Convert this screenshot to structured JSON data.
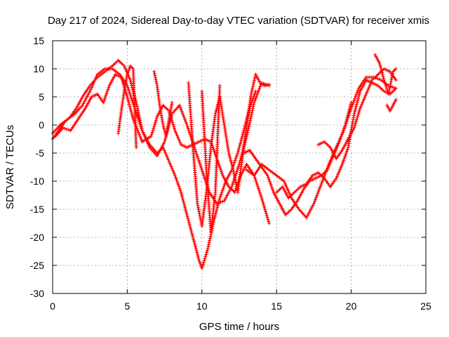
{
  "chart_data": {
    "type": "scatter",
    "title": "Day 217 of 2024, Sidereal Day-to-day VTEC variation (SDTVAR) for receiver xmis",
    "xlabel": "GPS time / hours",
    "ylabel": "SDTVAR / TECUs",
    "xlim": [
      0,
      25
    ],
    "ylim": [
      -30,
      15
    ],
    "xticks": [
      "0",
      "5",
      "10",
      "15",
      "20",
      "25"
    ],
    "yticks": [
      "15",
      "10",
      "5",
      "0",
      "-5",
      "-10",
      "-15",
      "-20",
      "-25",
      "-30"
    ],
    "grid": true,
    "marker": "+",
    "color": "#ff0000",
    "series": [
      {
        "x": [
          0.0,
          0.4,
          0.8,
          1.2,
          1.6,
          2.0,
          2.5,
          3.0,
          3.5,
          4.0,
          4.4,
          4.8,
          5.2,
          5.6,
          6.0,
          6.5,
          7.0,
          7.4,
          7.8,
          8.2,
          8.6,
          9.0,
          9.4,
          9.8,
          10.0,
          10.4,
          10.8,
          11.2,
          11.6,
          12.0,
          12.4,
          12.8,
          13.2,
          13.6
        ],
        "y": [
          -2.5,
          -1.0,
          0.5,
          1.5,
          3.0,
          5.0,
          7.0,
          8.5,
          9.5,
          10.5,
          11.5,
          10.5,
          8.0,
          4.0,
          -1.0,
          -3.5,
          -5.0,
          -4.0,
          -6.5,
          -9.0,
          -12.0,
          -16.0,
          -20.0,
          -24.0,
          -25.5,
          -22.0,
          -17.0,
          -13.0,
          -10.0,
          -8.0,
          -5.0,
          -1.0,
          3.0,
          6.0
        ]
      },
      {
        "x": [
          0.0,
          0.5,
          1.0,
          1.5,
          2.0,
          2.5,
          3.0,
          3.5,
          4.0,
          4.5,
          5.0,
          5.5,
          6.0,
          6.5,
          7.0,
          7.5,
          8.0,
          8.5,
          9.0,
          9.5,
          10.0,
          10.5,
          11.0,
          11.5,
          12.0,
          12.5,
          13.0,
          13.5,
          14.0,
          14.5
        ],
        "y": [
          -1.5,
          0.0,
          1.0,
          2.0,
          3.5,
          6.0,
          9.0,
          10.0,
          10.0,
          9.0,
          7.0,
          3.0,
          -1.0,
          -4.0,
          -5.5,
          -3.0,
          2.0,
          3.5,
          0.0,
          -4.0,
          -8.0,
          -12.0,
          -14.0,
          -13.5,
          -11.0,
          -7.0,
          -2.0,
          4.0,
          7.5,
          7.0
        ]
      },
      {
        "x": [
          0.2,
          0.7,
          1.2,
          1.7,
          2.2,
          2.6,
          3.0,
          3.4,
          3.8,
          4.2,
          4.6,
          5.0,
          5.4,
          6.0,
          6.6,
          7.0,
          7.4,
          7.8,
          8.2,
          8.6,
          9.0,
          9.4,
          9.8,
          10.2,
          10.6,
          11.0,
          11.4,
          11.8,
          12.2,
          12.6,
          13.0,
          13.5,
          14.0,
          14.5
        ],
        "y": [
          -2.0,
          -0.5,
          -1.0,
          1.0,
          3.0,
          5.0,
          5.5,
          4.0,
          7.0,
          9.0,
          8.5,
          5.0,
          1.0,
          -3.0,
          -2.0,
          1.5,
          3.5,
          2.5,
          -1.0,
          -3.5,
          -4.0,
          -3.5,
          -3.0,
          -2.5,
          -3.0,
          -6.0,
          -9.0,
          -11.0,
          -12.0,
          -9.0,
          -7.0,
          -9.0,
          -13.0,
          -17.5
        ]
      },
      {
        "x": [
          4.4,
          4.6,
          4.8,
          5.0,
          5.2,
          5.4,
          5.6
        ],
        "y": [
          -1.5,
          2.5,
          6.0,
          9.0,
          10.5,
          10.0,
          -4.0
        ]
      },
      {
        "x": [
          6.8,
          7.0,
          7.2,
          7.4,
          7.6,
          7.8,
          8.0
        ],
        "y": [
          9.5,
          7.0,
          3.0,
          0.0,
          -2.0,
          1.0,
          4.0
        ]
      },
      {
        "x": [
          9.1,
          9.4,
          9.7,
          10.0,
          10.3,
          10.6,
          10.9,
          11.2,
          11.5,
          11.8,
          12.1,
          12.4,
          12.7,
          13.0,
          13.3,
          13.6,
          13.9,
          14.2,
          14.5
        ],
        "y": [
          7.5,
          -4.0,
          -14.0,
          -18.0,
          -12.0,
          -4.0,
          2.0,
          5.0,
          0.0,
          -5.0,
          -8.0,
          -12.0,
          -6.0,
          0.0,
          5.5,
          9.0,
          7.5,
          7.0,
          7.2
        ]
      },
      {
        "x": [
          10.0,
          10.3,
          10.6,
          10.9,
          11.2
        ],
        "y": [
          6.0,
          -8.0,
          -19.0,
          -12.0,
          7.0
        ]
      },
      {
        "x": [
          12.8,
          13.2,
          13.6,
          14.0,
          14.4,
          14.8,
          15.2,
          15.6,
          16.0,
          16.4,
          16.8,
          17.2,
          17.6,
          18.0,
          18.4,
          18.8,
          19.2,
          19.6,
          20.0
        ],
        "y": [
          -5.0,
          -4.5,
          -6.0,
          -7.5,
          -9.0,
          -12.0,
          -14.0,
          -16.0,
          -15.0,
          -13.5,
          -11.5,
          -10.0,
          -9.5,
          -9.0,
          -8.0,
          -5.5,
          -3.0,
          0.0,
          4.0
        ]
      },
      {
        "x": [
          13.0,
          13.5,
          14.0,
          14.5,
          15.0,
          15.5,
          16.0,
          16.5,
          17.0,
          17.5,
          18.0,
          18.5,
          19.0,
          19.5,
          20.0,
          20.5,
          21.0,
          21.5,
          22.0,
          22.5,
          23.0
        ],
        "y": [
          -8.0,
          -9.0,
          -7.0,
          -8.0,
          -9.0,
          -10.0,
          -13.0,
          -15.0,
          -16.5,
          -14.0,
          -10.5,
          -7.0,
          -4.0,
          -1.0,
          3.0,
          6.5,
          8.5,
          8.5,
          8.0,
          7.0,
          6.5
        ]
      },
      {
        "x": [
          15.0,
          15.4,
          15.8,
          16.2,
          16.6,
          17.0,
          17.4,
          17.8,
          18.2,
          18.6,
          19.0,
          19.4,
          19.8,
          20.2,
          20.6,
          21.0,
          21.4,
          21.8,
          22.2,
          22.6,
          23.0
        ],
        "y": [
          -12.0,
          -11.0,
          -13.0,
          -12.0,
          -11.0,
          -10.5,
          -9.0,
          -8.5,
          -9.5,
          -11.0,
          -9.5,
          -7.0,
          -4.0,
          2.0,
          6.0,
          8.0,
          7.5,
          7.0,
          6.0,
          5.5,
          6.5
        ]
      },
      {
        "x": [
          17.8,
          18.2,
          18.6,
          19.0,
          19.4,
          19.8,
          20.2,
          20.6,
          21.0,
          21.4,
          21.8,
          22.2,
          22.6,
          23.0
        ],
        "y": [
          -3.5,
          -3.0,
          -4.0,
          -6.0,
          -4.5,
          -2.5,
          -0.5,
          3.0,
          5.5,
          8.0,
          9.0,
          10.0,
          9.5,
          8.0
        ]
      },
      {
        "x": [
          21.6,
          21.9,
          22.2,
          22.5,
          22.8,
          23.0
        ],
        "y": [
          12.5,
          11.0,
          8.0,
          5.5,
          9.5,
          10.0
        ]
      },
      {
        "x": [
          22.4,
          22.6,
          22.8,
          23.0
        ],
        "y": [
          3.5,
          2.5,
          3.5,
          4.5
        ]
      }
    ]
  }
}
